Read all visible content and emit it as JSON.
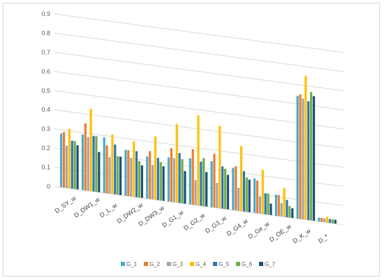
{
  "chart_data": {
    "type": "bar",
    "title": "",
    "xlabel": "",
    "ylabel": "",
    "ylim": [
      0,
      0.9
    ],
    "yticks": [
      "0",
      "0.1",
      "0.2",
      "0.3",
      "0.4",
      "0.5",
      "0.6",
      "0.7",
      "0.8",
      "0.9"
    ],
    "grid": true,
    "legend_position": "bottom",
    "categories": [
      "D_SY_w",
      "D_DW1_w",
      "D_L_w",
      "D_DW2_w",
      "D_DW3_w",
      "D_G1_w",
      "D_G2_w",
      "D_G3_w",
      "D_G4_w",
      "D_Ge_w",
      "D_OE_w",
      "D_K_w",
      "D_*"
    ],
    "series": [
      {
        "name": "G_1",
        "color": "#4bacc6",
        "values": [
          0.28,
          0.29,
          0.29,
          0.24,
          0.22,
          0.23,
          0.24,
          0.24,
          0.22,
          0.18,
          0.11,
          0.64,
          0.02
        ]
      },
      {
        "name": "G_2",
        "color": "#ed7d31",
        "values": [
          0.29,
          0.35,
          0.25,
          0.24,
          0.25,
          0.28,
          0.29,
          0.28,
          0.23,
          0.17,
          0.11,
          0.65,
          0.02
        ]
      },
      {
        "name": "G_3",
        "color": "#a5a5a5",
        "values": [
          0.22,
          0.28,
          0.19,
          0.2,
          0.18,
          0.23,
          0.13,
          0.13,
          0.12,
          0.09,
          0.07,
          0.63,
          0.02
        ]
      },
      {
        "name": "G_4",
        "color": "#ffc000",
        "values": [
          0.31,
          0.43,
          0.31,
          0.29,
          0.33,
          0.41,
          0.47,
          0.43,
          0.34,
          0.23,
          0.15,
          0.75,
          0.03
        ]
      },
      {
        "name": "G_5",
        "color": "#2e75b6",
        "values": [
          0.25,
          0.29,
          0.26,
          0.24,
          0.22,
          0.26,
          0.23,
          0.22,
          0.21,
          0.11,
          0.09,
          0.62,
          0.02
        ]
      },
      {
        "name": "G_6",
        "color": "#70ad47",
        "values": [
          0.25,
          0.29,
          0.2,
          0.19,
          0.2,
          0.23,
          0.25,
          0.21,
          0.18,
          0.11,
          0.06,
          0.67,
          0.02
        ]
      },
      {
        "name": "G_7",
        "color": "#1f4e79",
        "values": [
          0.23,
          0.21,
          0.2,
          0.17,
          0.18,
          0.17,
          0.18,
          0.18,
          0.17,
          0.06,
          0.05,
          0.65,
          0.02
        ]
      }
    ]
  }
}
